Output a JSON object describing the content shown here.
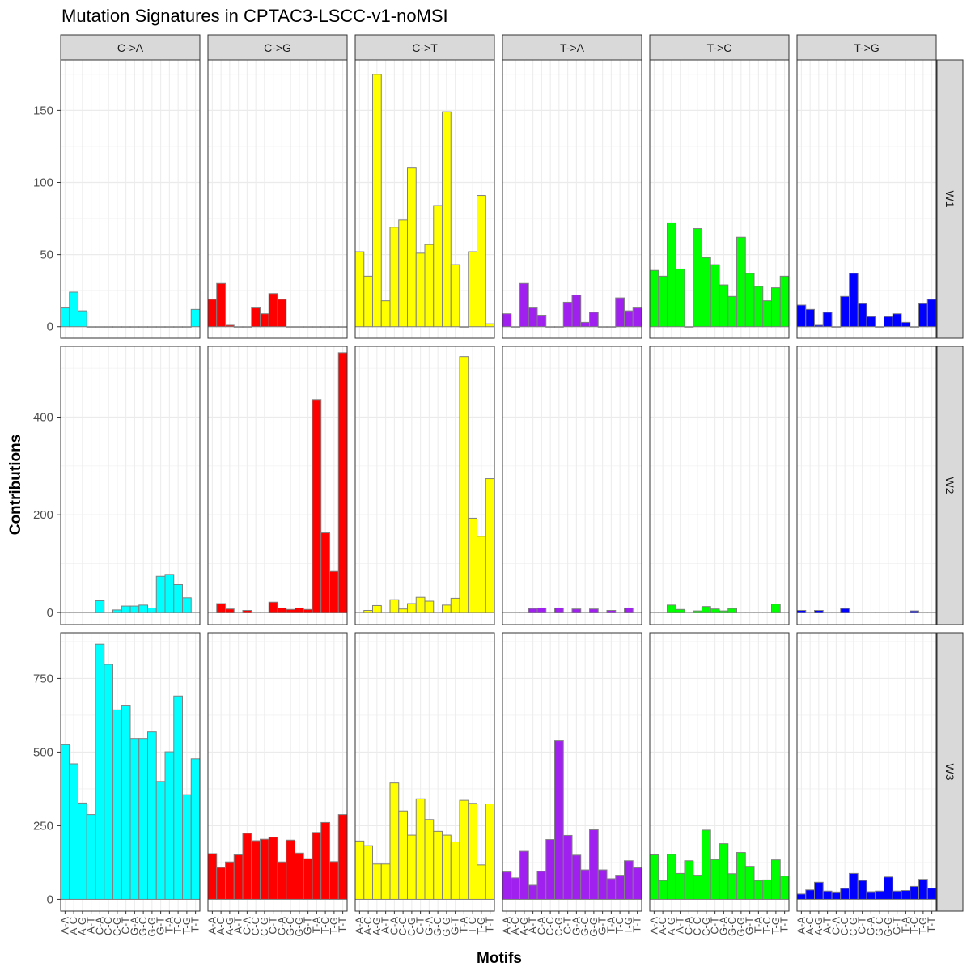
{
  "chart_data": {
    "type": "bar",
    "title": "Mutation Signatures in CPTAC3-LSCC-v1-noMSI",
    "xlabel": "Motifs",
    "ylabel": "Contributions",
    "facet_cols": [
      {
        "label": "C->A",
        "color": "#00FFFF"
      },
      {
        "label": "C->G",
        "color": "#FF0000"
      },
      {
        "label": "C->T",
        "color": "#FFFF00"
      },
      {
        "label": "T->A",
        "color": "#A020F0"
      },
      {
        "label": "T->C",
        "color": "#00FF00"
      },
      {
        "label": "T->G",
        "color": "#0000FF"
      }
    ],
    "facet_rows": [
      {
        "label": "W1",
        "ylim": [
          -8,
          185
        ],
        "yticks": [
          0,
          50,
          100,
          150
        ]
      },
      {
        "label": "W2",
        "ylim": [
          -25,
          545
        ],
        "yticks": [
          0,
          200,
          400
        ]
      },
      {
        "label": "W3",
        "ylim": [
          -40,
          905
        ],
        "yticks": [
          0,
          250,
          500,
          750
        ]
      }
    ],
    "categories": [
      "A-A",
      "A-C",
      "A-G",
      "A-T",
      "C-A",
      "C-C",
      "C-G",
      "C-T",
      "G-A",
      "G-C",
      "G-G",
      "G-T",
      "T-A",
      "T-C",
      "T-G",
      "T-T"
    ],
    "series": [
      {
        "name": "W1",
        "values": [
          [
            13,
            24,
            11,
            0,
            0,
            0,
            0,
            0,
            0,
            0,
            0,
            0,
            0,
            0,
            0,
            12
          ],
          [
            19,
            30,
            1,
            0,
            0,
            13,
            9,
            23,
            19,
            0,
            0,
            0,
            0,
            0,
            0,
            0
          ],
          [
            52,
            35,
            175,
            18,
            69,
            74,
            110,
            51,
            57,
            84,
            149,
            43,
            0,
            52,
            91,
            2
          ],
          [
            9,
            0,
            30,
            13,
            8,
            0,
            0,
            17,
            22,
            3,
            10,
            0,
            0,
            20,
            11,
            13
          ],
          [
            39,
            35,
            72,
            40,
            0,
            68,
            48,
            43,
            29,
            21,
            62,
            37,
            28,
            18,
            27,
            35
          ],
          [
            15,
            12,
            1,
            10,
            0,
            21,
            37,
            16,
            7,
            0,
            7,
            9,
            3,
            0,
            16,
            19
          ]
        ]
      },
      {
        "name": "W2",
        "values": [
          [
            0,
            0,
            0,
            0,
            24,
            0,
            5,
            13,
            13,
            15,
            9,
            74,
            78,
            57,
            30,
            0
          ],
          [
            0,
            18,
            7,
            0,
            4,
            0,
            0,
            21,
            9,
            6,
            9,
            6,
            436,
            163,
            84,
            532
          ],
          [
            0,
            4,
            14,
            0,
            26,
            7,
            18,
            31,
            23,
            0,
            15,
            29,
            524,
            193,
            156,
            274
          ],
          [
            0,
            0,
            0,
            8,
            9,
            0,
            9,
            0,
            7,
            0,
            7,
            0,
            4,
            0,
            9,
            0
          ],
          [
            0,
            0,
            15,
            6,
            0,
            3,
            12,
            7,
            3,
            8,
            0,
            0,
            0,
            0,
            17,
            0
          ],
          [
            4,
            0,
            4,
            0,
            0,
            8,
            0,
            0,
            0,
            0,
            0,
            0,
            0,
            3,
            0,
            0
          ]
        ]
      },
      {
        "name": "W3",
        "values": [
          [
            525,
            460,
            327,
            288,
            866,
            798,
            643,
            659,
            546,
            546,
            568,
            400,
            501,
            690,
            355,
            477
          ],
          [
            155,
            108,
            127,
            151,
            224,
            199,
            204,
            211,
            127,
            201,
            157,
            138,
            227,
            261,
            128,
            288
          ],
          [
            198,
            182,
            120,
            120,
            395,
            300,
            218,
            341,
            271,
            231,
            218,
            195,
            336,
            326,
            117,
            324
          ],
          [
            93,
            73,
            163,
            48,
            95,
            203,
            538,
            217,
            150,
            100,
            236,
            100,
            70,
            82,
            131,
            107
          ],
          [
            151,
            64,
            153,
            88,
            131,
            82,
            235,
            135,
            189,
            87,
            159,
            112,
            64,
            66,
            134,
            79
          ],
          [
            18,
            32,
            58,
            28,
            25,
            37,
            88,
            64,
            26,
            28,
            76,
            28,
            30,
            44,
            68,
            38
          ]
        ]
      }
    ]
  }
}
